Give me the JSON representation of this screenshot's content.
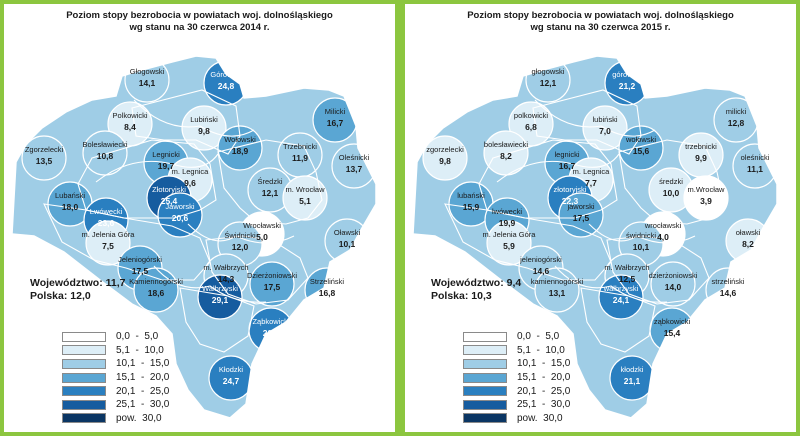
{
  "palette": [
    "#ffffff",
    "#ddeef7",
    "#9fcde6",
    "#5aa6d3",
    "#2a7fc0",
    "#165c9f",
    "#0a3563"
  ],
  "legend": [
    "0,0  -  5,0",
    "5,1  -  10,0",
    "10,1  -  15,0",
    "15,1  -  20,0",
    "20,1  -  25,0",
    "25,1  -  30,0",
    "pow.  30,0"
  ],
  "panels": [
    {
      "title_line1": "Poziom stopy bezrobocia w powiatach woj. dolnośląskiego",
      "title_line2": "wg stanu na 30 czerwca 2014 r.",
      "summary_line1": "Województwo: 11,7",
      "summary_line2": "Polska: 12,0",
      "districts": [
        {
          "name": "Głogowski",
          "value": "14,1",
          "cls": 2
        },
        {
          "name": "Górowski",
          "value": "24,8",
          "cls": 4
        },
        {
          "name": "Milicki",
          "value": "16,7",
          "cls": 3
        },
        {
          "name": "Polkowicki",
          "value": "8,4",
          "cls": 1
        },
        {
          "name": "Lubiński",
          "value": "9,8",
          "cls": 1
        },
        {
          "name": "Wołowski",
          "value": "18,9",
          "cls": 3
        },
        {
          "name": "Trzebnicki",
          "value": "11,9",
          "cls": 2
        },
        {
          "name": "Oleśnicki",
          "value": "13,7",
          "cls": 2
        },
        {
          "name": "Zgorzelecki",
          "value": "13,5",
          "cls": 2
        },
        {
          "name": "Bolesławiecki",
          "value": "10,8",
          "cls": 2
        },
        {
          "name": "Legnicki",
          "value": "19,7",
          "cls": 3
        },
        {
          "name": "m. Legnica",
          "value": "9,6",
          "cls": 1
        },
        {
          "name": "Złotoryjski",
          "value": "25,4",
          "cls": 5
        },
        {
          "name": "Średzki",
          "value": "12,1",
          "cls": 2
        },
        {
          "name": "m. Wrocław",
          "value": "5,1",
          "cls": 1
        },
        {
          "name": "Lubański",
          "value": "18,0",
          "cls": 3
        },
        {
          "name": "Lwówecki",
          "value": "23,6",
          "cls": 4
        },
        {
          "name": "Jaworski",
          "value": "20,6",
          "cls": 4
        },
        {
          "name": "Wrocławski",
          "value": "5,0",
          "cls": 0
        },
        {
          "name": "Oławski",
          "value": "10,1",
          "cls": 2
        },
        {
          "name": "Świdnicki",
          "value": "12,0",
          "cls": 2
        },
        {
          "name": "m. Jelenia Góra",
          "value": "7,5",
          "cls": 1
        },
        {
          "name": "Jeleniogórski",
          "value": "17,5",
          "cls": 3
        },
        {
          "name": "Kamiennogórski",
          "value": "18,6",
          "cls": 3
        },
        {
          "name": "m. Wałbrzych",
          "value": "14,3",
          "cls": 2
        },
        {
          "name": "Wałbrzyski",
          "value": "29,1",
          "cls": 5
        },
        {
          "name": "Dzierżoniowski",
          "value": "17,5",
          "cls": 3
        },
        {
          "name": "Strzeliński",
          "value": "16,8",
          "cls": 3
        },
        {
          "name": "Ząbkowicki",
          "value": "20,9",
          "cls": 4
        },
        {
          "name": "Kłodzki",
          "value": "24,7",
          "cls": 4
        }
      ]
    },
    {
      "title_line1": "Poziom stopy bezrobocia w powiatach woj. dolnośląskiego",
      "title_line2": "wg stanu na 30 czerwca 2015 r.",
      "summary_line1": "Województwo: 9,4",
      "summary_line2": "Polska: 10,3",
      "districts": [
        {
          "name": "głogowski",
          "value": "12,1",
          "cls": 2
        },
        {
          "name": "górowski",
          "value": "21,2",
          "cls": 4
        },
        {
          "name": "milicki",
          "value": "12,8",
          "cls": 2
        },
        {
          "name": "polkowicki",
          "value": "6,8",
          "cls": 1
        },
        {
          "name": "lubiński",
          "value": "7,0",
          "cls": 1
        },
        {
          "name": "wołowski",
          "value": "15,6",
          "cls": 3
        },
        {
          "name": "trzebnicki",
          "value": "9,9",
          "cls": 1
        },
        {
          "name": "oleśnicki",
          "value": "11,1",
          "cls": 2
        },
        {
          "name": "zgorzelecki",
          "value": "9,8",
          "cls": 1
        },
        {
          "name": "bolesławiecki",
          "value": "8,2",
          "cls": 1
        },
        {
          "name": "legnicki",
          "value": "16,7",
          "cls": 3
        },
        {
          "name": "m. Legnica",
          "value": "7,7",
          "cls": 1
        },
        {
          "name": "złotoryjski",
          "value": "22,3",
          "cls": 4
        },
        {
          "name": "średzki",
          "value": "10,0",
          "cls": 1
        },
        {
          "name": "m.Wrocław",
          "value": "3,9",
          "cls": 0
        },
        {
          "name": "lubański",
          "value": "15,9",
          "cls": 3
        },
        {
          "name": "lwówecki",
          "value": "19,9",
          "cls": 3
        },
        {
          "name": "jaworski",
          "value": "17,5",
          "cls": 3
        },
        {
          "name": "wrocławski",
          "value": "4,0",
          "cls": 0
        },
        {
          "name": "oławski",
          "value": "8,2",
          "cls": 1
        },
        {
          "name": "świdnicki",
          "value": "10,1",
          "cls": 2
        },
        {
          "name": "m. Jelenia Góra",
          "value": "5,9",
          "cls": 1
        },
        {
          "name": "jeleniogórski",
          "value": "14,6",
          "cls": 2
        },
        {
          "name": "kamiennogórski",
          "value": "13,1",
          "cls": 2
        },
        {
          "name": "m. Wałbrzych",
          "value": "12,5",
          "cls": 2
        },
        {
          "name": "wałbrzyski",
          "value": "24,1",
          "cls": 4
        },
        {
          "name": "dzierżoniowski",
          "value": "14,0",
          "cls": 2
        },
        {
          "name": "strzeliński",
          "value": "14,6",
          "cls": 2
        },
        {
          "name": "ząbkowicki",
          "value": "15,4",
          "cls": 3
        },
        {
          "name": "kłodzki",
          "value": "21,1",
          "cls": 4
        }
      ]
    }
  ]
}
